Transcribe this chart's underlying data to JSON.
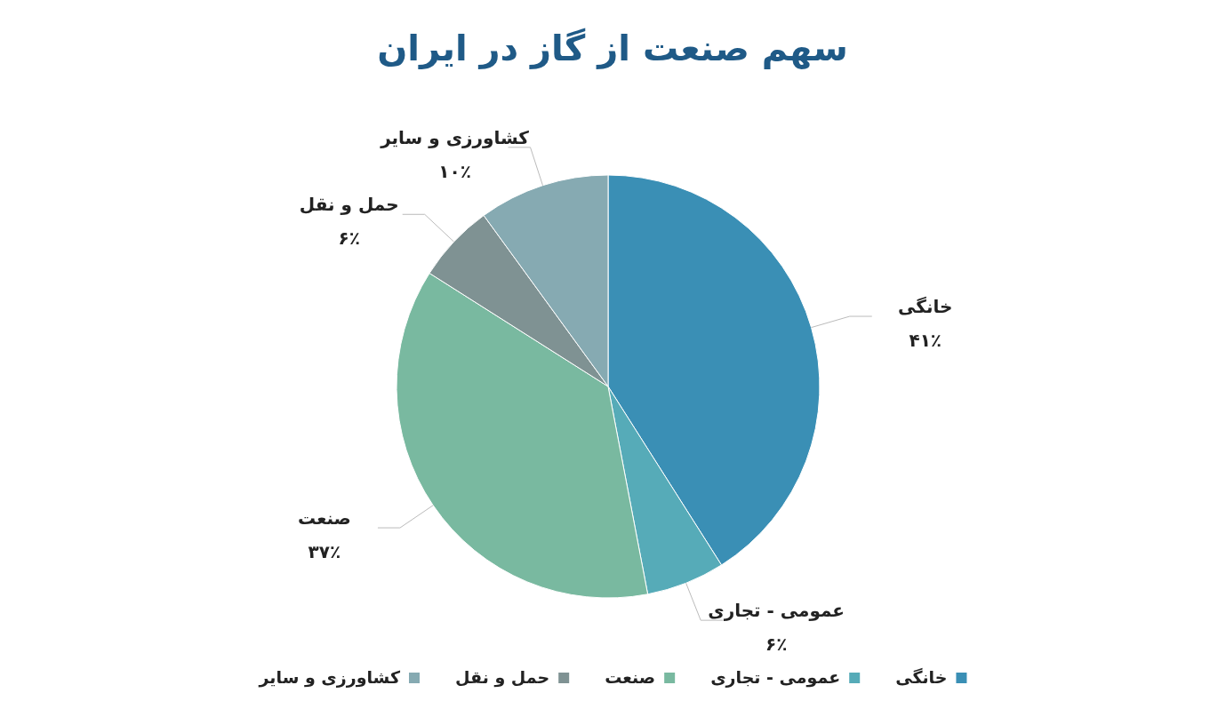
{
  "chart_data": {
    "type": "pie",
    "title": "سهم صنعت از گاز در ایران",
    "categories": [
      "خانگی",
      "عمومی - تجاری",
      "صنعت",
      "حمل و نقل",
      "کشاورزی و سایر"
    ],
    "values": [
      41,
      6,
      37,
      6,
      10
    ],
    "value_labels": [
      "۴۱٪",
      "۶٪",
      "۳۷٪",
      "۶٪",
      "۱۰٪"
    ],
    "colors": [
      "#3a8fb5",
      "#56abb8",
      "#79b9a0",
      "#7f9293",
      "#86aab2"
    ],
    "legend": "bottom"
  }
}
